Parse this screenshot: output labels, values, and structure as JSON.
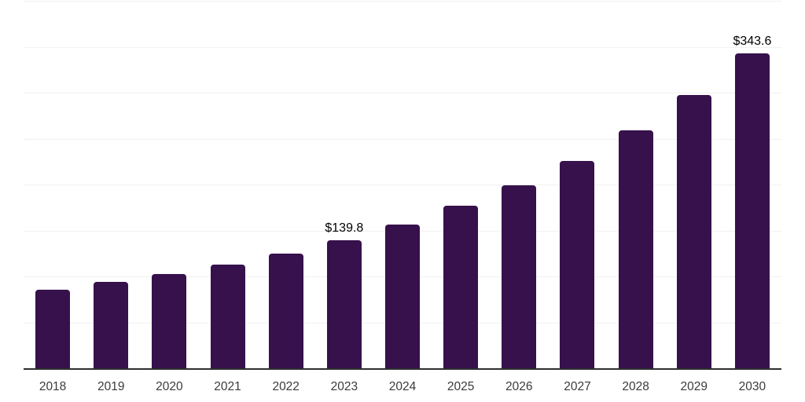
{
  "chart_data": {
    "type": "bar",
    "title": "",
    "xlabel": "",
    "ylabel": "",
    "categories": [
      "2018",
      "2019",
      "2020",
      "2021",
      "2022",
      "2023",
      "2024",
      "2025",
      "2026",
      "2027",
      "2028",
      "2029",
      "2030"
    ],
    "values": [
      86.4,
      95.0,
      103.5,
      113.8,
      125.7,
      139.8,
      157.3,
      177.6,
      200.3,
      226.9,
      259.9,
      298.3,
      343.6
    ],
    "data_labels": [
      "",
      "",
      "",
      "",
      "",
      "$139.8",
      "",
      "",
      "",
      "",
      "",
      "",
      "$343.6"
    ],
    "ylim": [
      0,
      400
    ],
    "grid": true,
    "gridline_values": [
      50,
      100,
      150,
      200,
      250,
      300,
      350,
      400
    ],
    "legend": false,
    "colors": {
      "bar": "#36114C",
      "gridline": "#f1f1f1",
      "axis_line": "#2f2f2f",
      "tick_label": "#3b3b3b",
      "data_label": "#000000",
      "background": "#ffffff"
    }
  }
}
